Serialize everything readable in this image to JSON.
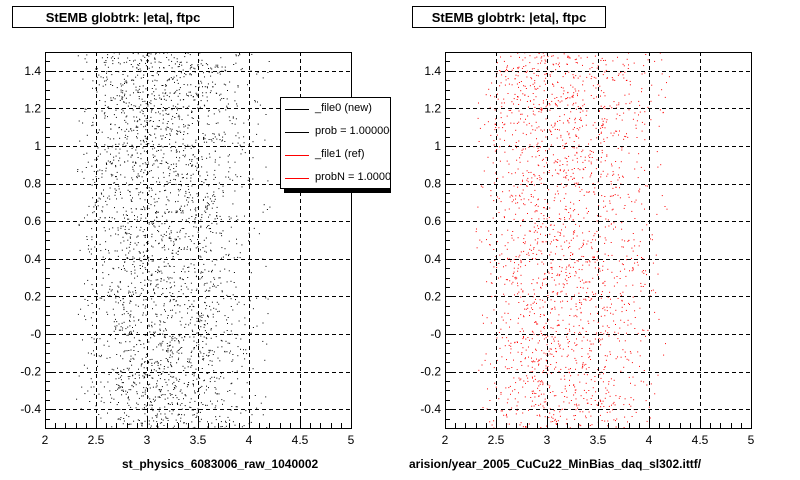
{
  "chart_data": [
    {
      "type": "scatter",
      "title": "StEMB globtrk: |eta|, ftpc",
      "xlabel": "st_physics_6083006_raw_1040002",
      "ylabel": "",
      "xlim": [
        2,
        5
      ],
      "ylim": [
        -0.5,
        1.5
      ],
      "x_ticks": [
        "2",
        "2.5",
        "3",
        "3.5",
        "4",
        "4.5",
        "5"
      ],
      "y_ticks": [
        "-0.4",
        "-0.2",
        "-0",
        "0.2",
        "0.4",
        "0.6",
        "0.8",
        "1",
        "1.2",
        "1.4"
      ],
      "grid": true,
      "marker_color": "#000000",
      "series": [
        {
          "name": "_file0 (new)",
          "x_range": [
            2.3,
            4.2
          ],
          "y_range": [
            -0.5,
            1.5
          ],
          "peak_x": [
            2.8,
            3.3
          ],
          "n_points": 2600
        }
      ],
      "legend": {
        "placement": "top-right",
        "entries": [
          {
            "label": "_file0 (new)",
            "color": "#000000"
          },
          {
            "label": "prob = 1.000000",
            "color": "#000000"
          },
          {
            "label": "_file1 (ref)",
            "color": "#ff0000"
          },
          {
            "label": "probN = 1.000000",
            "color": "#ff0000"
          }
        ]
      }
    },
    {
      "type": "scatter",
      "title": "StEMB globtrk: |eta|, ftpc",
      "xlabel": "arision/year_2005_CuCu22_MinBias_daq_sl302.ittf/",
      "ylabel": "",
      "xlim": [
        2,
        5
      ],
      "ylim": [
        -0.5,
        1.5
      ],
      "x_ticks": [
        "2",
        "2.5",
        "3",
        "3.5",
        "4",
        "4.5",
        "5"
      ],
      "y_ticks": [
        "-0.4",
        "-0.2",
        "-0",
        "0.2",
        "0.4",
        "0.6",
        "0.8",
        "1",
        "1.2",
        "1.4"
      ],
      "grid": true,
      "marker_color": "#ff0000",
      "series": [
        {
          "name": "_file1 (ref)",
          "x_range": [
            2.3,
            4.2
          ],
          "y_range": [
            -0.5,
            1.5
          ],
          "peak_x": [
            2.8,
            3.3
          ],
          "n_points": 2000
        }
      ]
    }
  ]
}
